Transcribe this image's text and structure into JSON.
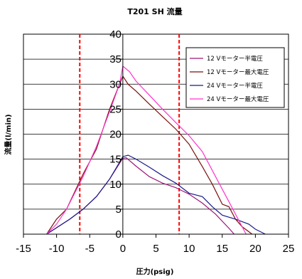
{
  "chart_data": {
    "type": "line",
    "title": "T201 SH 流量",
    "xlabel": "圧力(psig)",
    "ylabel": "流量(l/min)",
    "xlim": [
      -15,
      25
    ],
    "ylim": [
      0,
      40
    ],
    "x_ticks": [
      -15,
      -10,
      -5,
      0,
      5,
      10,
      15,
      20,
      25
    ],
    "y_ticks": [
      0,
      5,
      10,
      15,
      20,
      25,
      30,
      35,
      40
    ],
    "grid": true,
    "legend_position": "top-right",
    "reference_lines_x": [
      -6.5,
      8.5
    ],
    "reference_line_color": "#ff0000",
    "series": [
      {
        "name": "12 Vモーター半電圧",
        "color": "#a0157a",
        "points": [
          [
            -11.5,
            0
          ],
          [
            -8,
            3
          ],
          [
            -6,
            5
          ],
          [
            -4,
            7.5
          ],
          [
            -2,
            11
          ],
          [
            0,
            15.2
          ],
          [
            0.5,
            15.3
          ],
          [
            2,
            13.6
          ],
          [
            4,
            11.5
          ],
          [
            6,
            10.2
          ],
          [
            8,
            9.3
          ],
          [
            10,
            8
          ],
          [
            12,
            6.2
          ],
          [
            14,
            4
          ],
          [
            16,
            1.2
          ],
          [
            16.8,
            0
          ]
        ]
      },
      {
        "name": "12 Vモーター最大電圧",
        "color": "#7a1010",
        "points": [
          [
            -11.5,
            0
          ],
          [
            -10,
            3
          ],
          [
            -8.5,
            5
          ],
          [
            -6,
            12
          ],
          [
            -4,
            17
          ],
          [
            -2,
            25
          ],
          [
            -0.5,
            30
          ],
          [
            0,
            31.6
          ],
          [
            0.8,
            30
          ],
          [
            2,
            28.6
          ],
          [
            4,
            26
          ],
          [
            6,
            23.5
          ],
          [
            8,
            21
          ],
          [
            10,
            18
          ],
          [
            12,
            13.5
          ],
          [
            13.5,
            10
          ],
          [
            15,
            6
          ],
          [
            16,
            5.5
          ],
          [
            17,
            3
          ],
          [
            18,
            1.5
          ],
          [
            19,
            0.5
          ],
          [
            19.5,
            0
          ]
        ]
      },
      {
        "name": "24 Vモーター半電圧",
        "color": "#1a1a8a",
        "points": [
          [
            -11.5,
            0
          ],
          [
            -8,
            3
          ],
          [
            -6,
            5
          ],
          [
            -4,
            7.5
          ],
          [
            -2,
            11
          ],
          [
            0,
            15.5
          ],
          [
            0.8,
            15.8
          ],
          [
            2,
            15
          ],
          [
            4,
            13.4
          ],
          [
            6,
            11.7
          ],
          [
            8,
            10.2
          ],
          [
            10,
            8.2
          ],
          [
            12,
            7.5
          ],
          [
            13.5,
            5.5
          ],
          [
            15,
            3.8
          ],
          [
            17,
            3
          ],
          [
            19,
            2
          ],
          [
            20,
            1
          ],
          [
            21.5,
            0
          ]
        ]
      },
      {
        "name": "24 Vモーター最大電圧",
        "color": "#ff33cc",
        "points": [
          [
            -11.5,
            0
          ],
          [
            -10,
            2
          ],
          [
            -8.5,
            5
          ],
          [
            -6,
            11.5
          ],
          [
            -4,
            17.5
          ],
          [
            -2,
            24.5
          ],
          [
            -0.5,
            30
          ],
          [
            0,
            33.6
          ],
          [
            1,
            32.5
          ],
          [
            2,
            30.6
          ],
          [
            4,
            27.8
          ],
          [
            6,
            25
          ],
          [
            8,
            22.3
          ],
          [
            10,
            19.7
          ],
          [
            12,
            16.5
          ],
          [
            14,
            11.5
          ],
          [
            16,
            6.5
          ],
          [
            18,
            1.5
          ],
          [
            18.6,
            0
          ]
        ]
      }
    ]
  }
}
